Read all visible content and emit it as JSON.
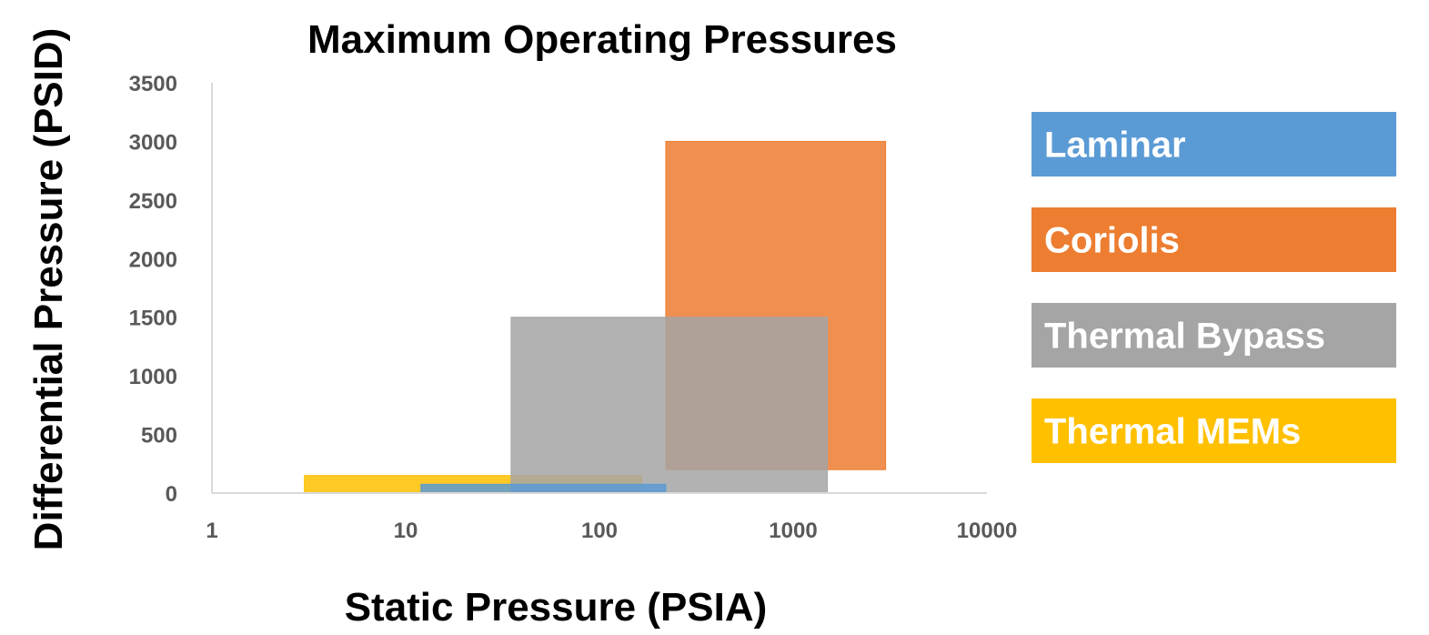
{
  "chart_data": {
    "type": "range-rectangles",
    "title": "Maximum Operating Pressures",
    "xlabel": "Static Pressure (PSIA)",
    "ylabel": "Differential Pressure (PSID)",
    "x_scale": "log",
    "xlim": [
      1,
      10000
    ],
    "ylim": [
      0,
      3500
    ],
    "x_ticks": [
      "1",
      "10",
      "100",
      "1000",
      "10000"
    ],
    "y_ticks": [
      "0",
      "500",
      "1000",
      "1500",
      "2000",
      "2500",
      "3000",
      "3500"
    ],
    "grid": false,
    "legend_position": "right",
    "series": [
      {
        "name": "Laminar",
        "color": "#5B9BD5",
        "x_min": 12,
        "x_max": 220,
        "y_min": 0,
        "y_max": 75
      },
      {
        "name": "Coriolis",
        "color": "#ED7D31",
        "x_min": 220,
        "x_max": 3000,
        "y_min": 200,
        "y_max": 3000
      },
      {
        "name": "Thermal Bypass",
        "color": "#A5A5A5",
        "x_min": 35,
        "x_max": 1500,
        "y_min": 0,
        "y_max": 1500
      },
      {
        "name": "Thermal MEMs",
        "color": "#FFC000",
        "x_min": 3,
        "x_max": 165,
        "y_min": 0,
        "y_max": 150
      }
    ],
    "draw_order": [
      "Thermal MEMs",
      "Coriolis",
      "Thermal Bypass",
      "Laminar"
    ]
  }
}
